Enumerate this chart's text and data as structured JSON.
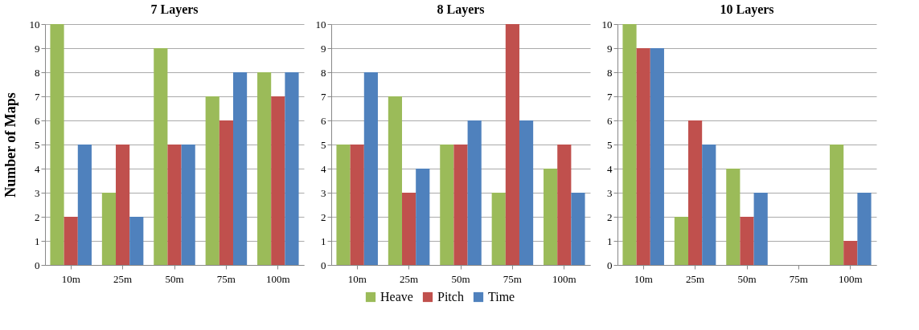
{
  "chart_data": [
    {
      "type": "bar",
      "title": "7 Layers",
      "ylabel": "Number of Maps",
      "categories": [
        "10m",
        "25m",
        "50m",
        "75m",
        "100m"
      ],
      "ylim": [
        0,
        10
      ],
      "yticks": [
        0,
        1,
        2,
        3,
        4,
        5,
        6,
        7,
        8,
        9,
        10
      ],
      "grid": "y",
      "legend": "bottom",
      "series": [
        {
          "name": "Heave",
          "color": "#9bbb59",
          "values": [
            10,
            3,
            9,
            7,
            8
          ]
        },
        {
          "name": "Pitch",
          "color": "#c0504d",
          "values": [
            2,
            5,
            5,
            6,
            7
          ]
        },
        {
          "name": "Time",
          "color": "#4f81bd",
          "values": [
            5,
            2,
            5,
            8,
            8
          ]
        }
      ]
    },
    {
      "type": "bar",
      "title": "8 Layers",
      "categories": [
        "10m",
        "25m",
        "50m",
        "75m",
        "100m"
      ],
      "ylim": [
        0,
        10
      ],
      "yticks": [
        0,
        1,
        2,
        3,
        4,
        5,
        6,
        7,
        8,
        9,
        10
      ],
      "grid": "y",
      "series": [
        {
          "name": "Heave",
          "color": "#9bbb59",
          "values": [
            5,
            7,
            5,
            3,
            4
          ]
        },
        {
          "name": "Pitch",
          "color": "#c0504d",
          "values": [
            5,
            3,
            5,
            10,
            5
          ]
        },
        {
          "name": "Time",
          "color": "#4f81bd",
          "values": [
            8,
            4,
            6,
            6,
            3
          ]
        }
      ]
    },
    {
      "type": "bar",
      "title": "10 Layers",
      "categories": [
        "10m",
        "25m",
        "50m",
        "75m",
        "100m"
      ],
      "ylim": [
        0,
        10
      ],
      "yticks": [
        0,
        1,
        2,
        3,
        4,
        5,
        6,
        7,
        8,
        9,
        10
      ],
      "grid": "y",
      "series": [
        {
          "name": "Heave",
          "color": "#9bbb59",
          "values": [
            10,
            2,
            4,
            0,
            5
          ]
        },
        {
          "name": "Pitch",
          "color": "#c0504d",
          "values": [
            9,
            6,
            2,
            0,
            1
          ]
        },
        {
          "name": "Time",
          "color": "#4f81bd",
          "values": [
            9,
            5,
            3,
            0,
            3
          ]
        }
      ]
    }
  ]
}
